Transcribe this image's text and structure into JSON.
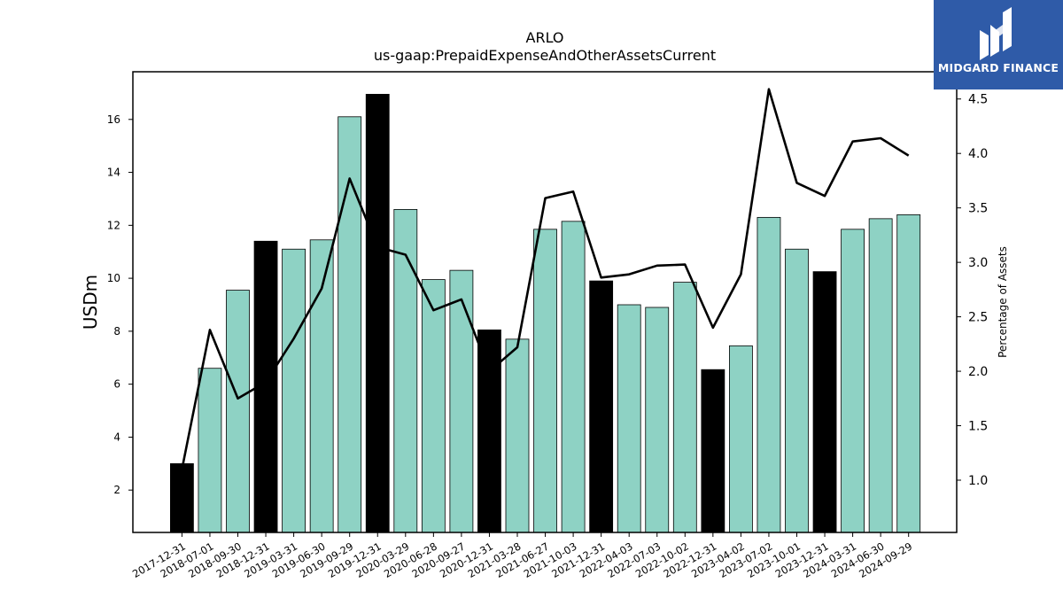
{
  "chart_data": {
    "type": "bar",
    "title": "ARLO",
    "subtitle": "us-gaap:PrepaidExpenseAndOtherAssetsCurrent",
    "ylabel": "USDm",
    "y2label": "Percentage of Assets",
    "ylim": [
      0.4,
      17.8
    ],
    "y2lim": [
      0.52,
      4.75
    ],
    "yticks": [
      2,
      4,
      6,
      8,
      10,
      12,
      14,
      16
    ],
    "y2ticks": [
      "1.0",
      "1.5",
      "2.0",
      "2.5",
      "3.0",
      "3.5",
      "4.0",
      "4.5"
    ],
    "categories": [
      "2017-12-31",
      "2018-07-01",
      "2018-09-30",
      "2018-12-31",
      "2019-03-31",
      "2019-06-30",
      "2019-09-29",
      "2019-12-31",
      "2020-03-29",
      "2020-06-28",
      "2020-09-27",
      "2020-12-31",
      "2021-03-28",
      "2021-06-27",
      "2021-10-03",
      "2021-12-31",
      "2022-04-03",
      "2022-07-03",
      "2022-10-02",
      "2022-12-31",
      "2023-04-02",
      "2023-07-02",
      "2023-10-01",
      "2023-12-31",
      "2024-03-31",
      "2024-06-30",
      "2024-09-29"
    ],
    "series": [
      {
        "values": [
          3.0,
          6.6,
          9.55,
          11.4,
          11.1,
          11.45,
          16.1,
          16.95,
          12.6,
          9.95,
          10.3,
          8.05,
          7.7,
          11.85,
          12.15,
          9.9,
          9.0,
          8.9,
          9.85,
          6.55,
          7.45,
          12.3,
          11.1,
          10.25,
          11.85,
          12.25,
          12.4
        ],
        "highlight": [
          true,
          false,
          false,
          true,
          false,
          false,
          false,
          true,
          false,
          false,
          false,
          true,
          false,
          false,
          false,
          true,
          false,
          false,
          false,
          true,
          false,
          false,
          false,
          true,
          false,
          false,
          false
        ]
      },
      {
        "axis": "right",
        "type": "line",
        "values": [
          1.1,
          2.38,
          1.75,
          1.9,
          2.3,
          2.76,
          3.77,
          3.14,
          3.07,
          2.56,
          2.66,
          2.0,
          2.22,
          3.59,
          3.65,
          2.86,
          2.89,
          2.97,
          2.98,
          2.4,
          2.89,
          4.59,
          3.73,
          3.61,
          4.11,
          4.14,
          3.98
        ]
      }
    ],
    "colors": {
      "bar": "#8ed2c4",
      "bar_highlight": "#000000",
      "line": "#000000"
    },
    "grid": false
  },
  "logo": {
    "text": "MIDGARD FINANCE",
    "icon": "midgard-logo-icon",
    "background": "#2f5ba8"
  }
}
